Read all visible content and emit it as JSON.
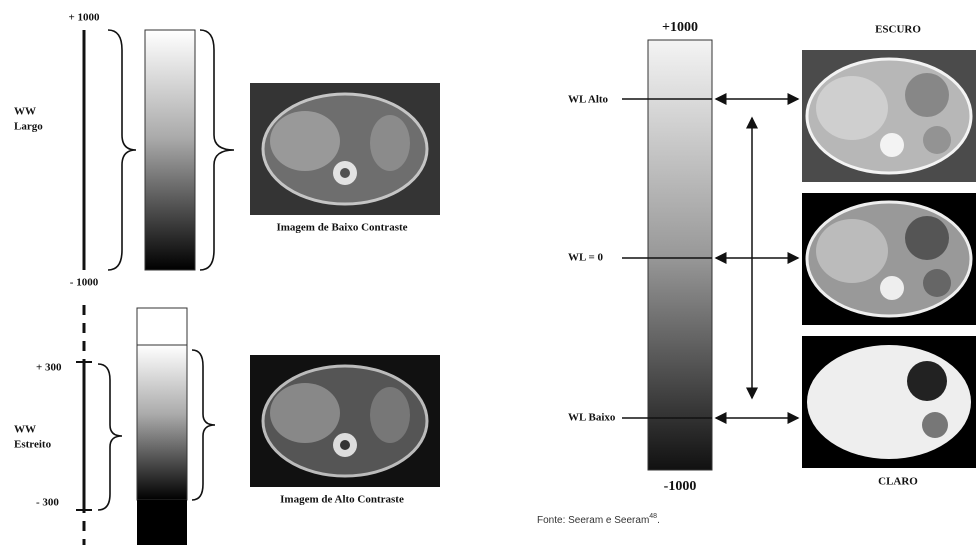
{
  "left_panel": {
    "wide": {
      "top_label": "+ 1000",
      "bottom_label": "- 1000",
      "ww_label": [
        "WW",
        "Largo"
      ],
      "caption": "Imagem de Baixo Contraste"
    },
    "narrow": {
      "top_label": "+ 300",
      "bottom_label": "- 300",
      "ww_label": [
        "WW",
        "Estreito"
      ],
      "caption": "Imagem de Alto Contraste"
    }
  },
  "right_panel": {
    "top_label": "+1000",
    "bottom_label": "-1000",
    "levels": [
      "WL Alto",
      "WL = 0",
      "WL Baixo"
    ],
    "image_top_label": "ESCURO",
    "image_bottom_label": "CLARO"
  },
  "source": {
    "text": "Fonte: Seeram e Seeram",
    "reference": "48",
    "end": "."
  }
}
